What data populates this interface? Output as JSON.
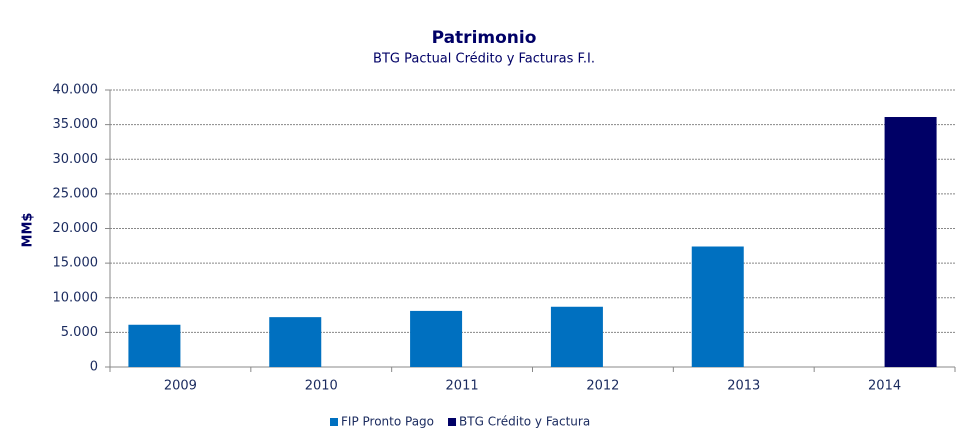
{
  "chart_data": {
    "type": "bar",
    "title": "Patrimonio",
    "subtitle": "BTG Pactual Crédito y Facturas F.I.",
    "y_label": "MM$",
    "categories": [
      "2009",
      "2010",
      "2011",
      "2012",
      "2013",
      "2014"
    ],
    "series": [
      {
        "name": "FIP Pronto Pago",
        "color": "#0070c0",
        "values": [
          6100,
          7200,
          8100,
          8700,
          17400,
          null
        ]
      },
      {
        "name": "BTG Crédito y Factura",
        "color": "#000066",
        "values": [
          null,
          null,
          null,
          null,
          null,
          36100
        ]
      }
    ],
    "ylim": [
      0,
      40000
    ],
    "yticks": [
      0,
      {
        "value": 5000,
        "label": "5.000"
      },
      {
        "value": 10000,
        "label": "10.000"
      },
      {
        "value": 15000,
        "label": "15.000"
      },
      {
        "value": 20000,
        "label": "20.000"
      },
      {
        "value": 25000,
        "label": "25.000"
      },
      {
        "value": 30000,
        "label": "30.000"
      },
      {
        "value": 35000,
        "label": "35.000"
      },
      {
        "value": 40000,
        "label": "40.000"
      }
    ],
    "grid": true,
    "legend": "bottom"
  }
}
